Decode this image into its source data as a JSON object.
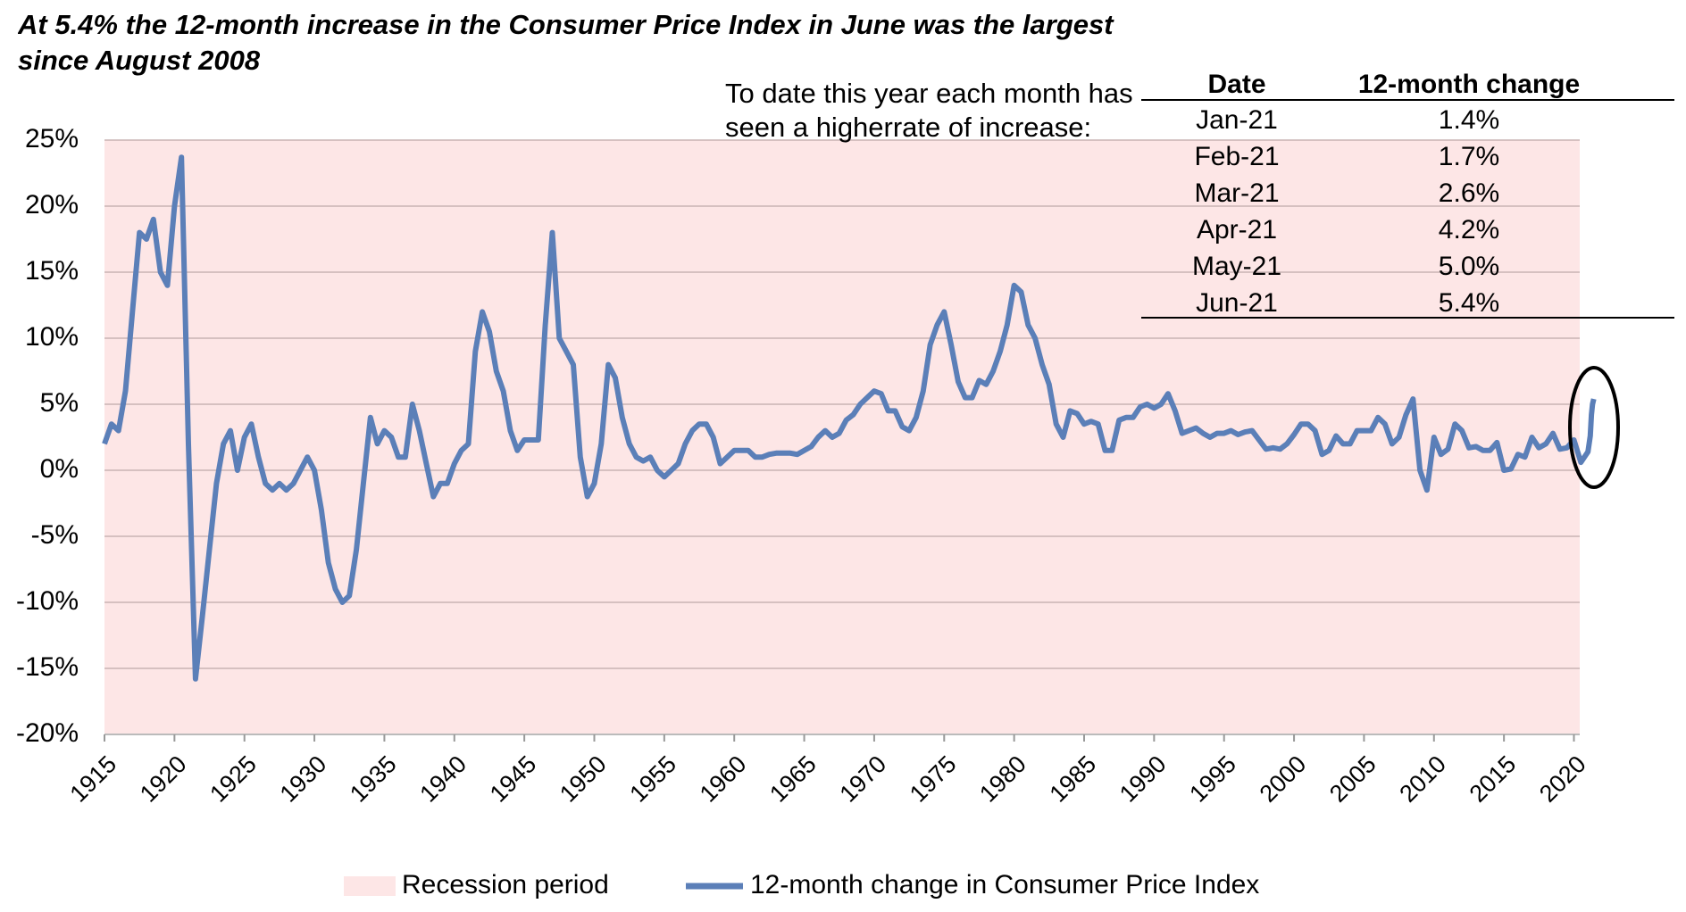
{
  "chart_data": {
    "type": "line",
    "title": "At 5.4% the 12-month increase in the Consumer Price Index in June was the largest since August 2008",
    "annotation": "To date this year each month has seen a higherrate of increase:",
    "table": {
      "columns": [
        "Date",
        "12-month change"
      ],
      "rows": [
        [
          "Jan-21",
          "1.4%"
        ],
        [
          "Feb-21",
          "1.7%"
        ],
        [
          "Mar-21",
          "2.6%"
        ],
        [
          "Apr-21",
          "4.2%"
        ],
        [
          "May-21",
          "5.0%"
        ],
        [
          "Jun-21",
          "5.4%"
        ]
      ]
    },
    "recession": {
      "name": "Recession period",
      "color": "#fde6e6"
    },
    "xlim": [
      1915,
      2021.5
    ],
    "xticks": [
      1915,
      1920,
      1925,
      1930,
      1935,
      1940,
      1945,
      1950,
      1955,
      1960,
      1965,
      1970,
      1975,
      1980,
      1985,
      1990,
      1995,
      2000,
      2005,
      2010,
      2015,
      2020
    ],
    "ylim": [
      -20,
      25
    ],
    "yticks": [
      {
        "value": 25,
        "label": "25%"
      },
      {
        "value": 20,
        "label": "20%"
      },
      {
        "value": 15,
        "label": "15%"
      },
      {
        "value": 10,
        "label": "10%"
      },
      {
        "value": 5,
        "label": "5%"
      },
      {
        "value": 0,
        "label": "0%"
      },
      {
        "value": -5,
        "label": "-5%"
      },
      {
        "value": -10,
        "label": "-10%"
      },
      {
        "value": -15,
        "label": "-15%"
      },
      {
        "value": -20,
        "label": "-20%"
      }
    ],
    "grid": true,
    "x": [
      1915,
      1915.5,
      1916,
      1916.5,
      1917,
      1917.5,
      1918,
      1918.5,
      1919,
      1919.5,
      1920,
      1920.5,
      1921,
      1921.5,
      1922,
      1922.5,
      1923,
      1923.5,
      1924,
      1924.5,
      1925,
      1925.5,
      1926,
      1926.5,
      1927,
      1927.5,
      1928,
      1928.5,
      1929,
      1929.5,
      1930,
      1930.5,
      1931,
      1931.5,
      1932,
      1932.5,
      1933,
      1933.5,
      1934,
      1934.5,
      1935,
      1935.5,
      1936,
      1936.5,
      1937,
      1937.5,
      1938,
      1938.5,
      1939,
      1939.5,
      1940,
      1940.5,
      1941,
      1941.5,
      1942,
      1942.5,
      1943,
      1943.5,
      1944,
      1944.5,
      1945,
      1945.5,
      1946,
      1946.5,
      1947,
      1947.5,
      1948,
      1948.5,
      1949,
      1949.5,
      1950,
      1950.5,
      1951,
      1951.5,
      1952,
      1952.5,
      1953,
      1953.5,
      1954,
      1954.5,
      1955,
      1955.5,
      1956,
      1956.5,
      1957,
      1957.5,
      1958,
      1958.5,
      1959,
      1959.5,
      1960,
      1960.5,
      1961,
      1961.5,
      1962,
      1962.5,
      1963,
      1963.5,
      1964,
      1964.5,
      1965,
      1965.5,
      1966,
      1966.5,
      1967,
      1967.5,
      1968,
      1968.5,
      1969,
      1969.5,
      1970,
      1970.5,
      1971,
      1971.5,
      1972,
      1972.5,
      1973,
      1973.5,
      1974,
      1974.5,
      1975,
      1975.5,
      1976,
      1976.5,
      1977,
      1977.5,
      1978,
      1978.5,
      1979,
      1979.5,
      1980,
      1980.5,
      1981,
      1981.5,
      1982,
      1982.5,
      1983,
      1983.5,
      1984,
      1984.5,
      1985,
      1985.5,
      1986,
      1986.5,
      1987,
      1987.5,
      1988,
      1988.5,
      1989,
      1989.5,
      1990,
      1990.5,
      1991,
      1991.5,
      1992,
      1992.5,
      1993,
      1993.5,
      1994,
      1994.5,
      1995,
      1995.5,
      1996,
      1996.5,
      1997,
      1997.5,
      1998,
      1998.5,
      1999,
      1999.5,
      2000,
      2000.5,
      2001,
      2001.5,
      2002,
      2002.5,
      2003,
      2003.5,
      2004,
      2004.5,
      2005,
      2005.5,
      2006,
      2006.5,
      2007,
      2007.5,
      2008,
      2008.5,
      2009,
      2009.5,
      2010,
      2010.5,
      2011,
      2011.5,
      2012,
      2012.5,
      2013,
      2013.5,
      2014,
      2014.5,
      2015,
      2015.5,
      2016,
      2016.5,
      2017,
      2017.5,
      2018,
      2018.5,
      2019,
      2019.5,
      2020,
      2020.5,
      2021,
      2021.17,
      2021.25,
      2021.33,
      2021.42
    ],
    "series": [
      {
        "name": "12-month change in Consumer Price Index",
        "color": "#5b7fb8",
        "values": [
          2,
          3.5,
          3,
          6,
          12,
          18,
          17.5,
          19,
          15,
          14,
          20,
          23.7,
          2,
          -15.8,
          -11,
          -6,
          -1,
          2,
          3,
          0,
          2.5,
          3.5,
          1,
          -1,
          -1.5,
          -1,
          -1.5,
          -1,
          0,
          1,
          0,
          -3,
          -7,
          -9,
          -10,
          -9.5,
          -6,
          -1,
          4,
          2,
          3,
          2.5,
          1,
          1,
          5,
          3,
          0.5,
          -2,
          -1,
          -1,
          0.5,
          1.5,
          2,
          9,
          12,
          10.5,
          7.5,
          6,
          3,
          1.5,
          2.3,
          2.3,
          2.3,
          11,
          18,
          10,
          9,
          8,
          1,
          -2,
          -1,
          2,
          8,
          7,
          4,
          2,
          1,
          0.7,
          1,
          0,
          -0.5,
          0,
          0.5,
          2,
          3,
          3.5,
          3.5,
          2.5,
          0.5,
          1,
          1.5,
          1.5,
          1.5,
          1,
          1,
          1.2,
          1.3,
          1.3,
          1.3,
          1.2,
          1.5,
          1.8,
          2.5,
          3,
          2.5,
          2.8,
          3.8,
          4.2,
          5,
          5.5,
          6,
          5.8,
          4.5,
          4.5,
          3.3,
          3,
          4,
          6,
          9.5,
          11,
          12,
          9.5,
          6.7,
          5.5,
          5.5,
          6.8,
          6.5,
          7.5,
          9,
          11,
          14,
          13.5,
          11,
          10,
          8,
          6.5,
          3.5,
          2.5,
          4.5,
          4.3,
          3.5,
          3.7,
          3.5,
          1.5,
          1.5,
          3.8,
          4,
          4,
          4.8,
          5,
          4.7,
          5,
          5.8,
          4.5,
          2.8,
          3,
          3.2,
          2.8,
          2.5,
          2.8,
          2.8,
          3,
          2.7,
          2.9,
          3,
          2.3,
          1.6,
          1.7,
          1.6,
          2,
          2.7,
          3.5,
          3.5,
          3,
          1.2,
          1.5,
          2.6,
          2,
          2,
          3,
          3,
          3,
          4,
          3.5,
          2,
          2.5,
          4.2,
          5.4,
          0,
          -1.5,
          2.5,
          1.2,
          1.6,
          3.5,
          3,
          1.7,
          1.8,
          1.5,
          1.5,
          2.1,
          0,
          0.1,
          1.2,
          1,
          2.5,
          1.7,
          2,
          2.8,
          1.6,
          1.7,
          2.3,
          0.6,
          1.4,
          2.6,
          4.2,
          5,
          5.4
        ]
      }
    ]
  }
}
